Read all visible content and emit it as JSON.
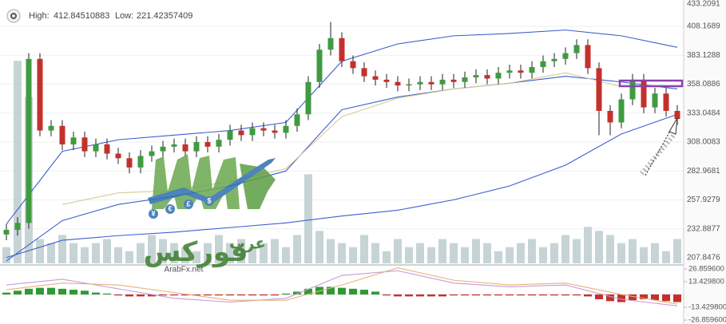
{
  "chart_data": {
    "type": "candlestick",
    "header": {
      "high_label": "High:",
      "high": 412.84510883,
      "low_label": "Low:",
      "low": 221.42357409
    },
    "ylim": [
      203,
      431
    ],
    "yticks": [
      433.2091,
      408.1689,
      383.1288,
      358.0886,
      333.0484,
      308.0083,
      282.9681,
      257.9279,
      232.8877,
      207.8476
    ],
    "grid": true,
    "up_color": "#3f9b3f",
    "down_color": "#c4302b",
    "open": [
      228,
      232,
      238,
      380,
      318,
      322,
      306,
      312,
      300,
      306,
      298,
      294,
      286,
      296,
      300,
      304,
      306,
      300,
      308,
      304,
      310,
      318,
      314,
      320,
      318,
      316,
      322,
      332,
      360,
      388,
      398,
      378,
      372,
      365,
      362,
      360,
      357,
      358,
      360,
      358,
      362,
      360,
      364,
      366,
      363,
      368,
      370,
      368,
      373,
      378,
      380,
      385,
      392,
      372,
      335,
      325,
      345,
      362,
      338,
      350,
      335
    ],
    "high": [
      237,
      243,
      385,
      385,
      327,
      327,
      317,
      317,
      311,
      311,
      303,
      299,
      301,
      305,
      309,
      311,
      311,
      313,
      313,
      315,
      323,
      323,
      325,
      325,
      323,
      327,
      337,
      365,
      393,
      412,
      403,
      383,
      377,
      370,
      367,
      365,
      363,
      365,
      365,
      367,
      367,
      369,
      371,
      371,
      373,
      375,
      375,
      378,
      383,
      385,
      390,
      397,
      397,
      377,
      340,
      350,
      367,
      367,
      355,
      355,
      340
    ],
    "low": [
      223,
      227,
      233,
      313,
      313,
      301,
      301,
      295,
      295,
      293,
      289,
      281,
      281,
      291,
      295,
      299,
      295,
      295,
      299,
      299,
      305,
      309,
      309,
      313,
      311,
      311,
      317,
      327,
      355,
      383,
      373,
      367,
      360,
      357,
      355,
      352,
      352,
      353,
      353,
      353,
      355,
      355,
      359,
      358,
      358,
      363,
      363,
      363,
      368,
      373,
      375,
      380,
      367,
      314,
      314,
      320,
      340,
      333,
      333,
      330,
      323
    ],
    "close": [
      232,
      238,
      380,
      318,
      322,
      306,
      312,
      300,
      306,
      298,
      294,
      286,
      296,
      300,
      304,
      306,
      300,
      308,
      304,
      310,
      318,
      314,
      320,
      318,
      316,
      322,
      332,
      360,
      388,
      398,
      378,
      372,
      365,
      362,
      360,
      357,
      358,
      360,
      358,
      362,
      360,
      364,
      366,
      363,
      368,
      370,
      368,
      373,
      378,
      380,
      385,
      392,
      372,
      335,
      325,
      345,
      362,
      338,
      350,
      335,
      328
    ],
    "volume": {
      "color": "#b9c9cc",
      "ylim": [
        0,
        130
      ],
      "values": [
        8,
        100,
        82,
        12,
        10,
        14,
        10,
        8,
        10,
        12,
        8,
        6,
        10,
        14,
        12,
        10,
        8,
        6,
        10,
        14,
        10,
        12,
        8,
        10,
        12,
        8,
        14,
        44,
        16,
        12,
        10,
        8,
        14,
        10,
        6,
        12,
        8,
        10,
        8,
        12,
        10,
        8,
        12,
        10,
        6,
        8,
        10,
        12,
        8,
        10,
        14,
        12,
        18,
        16,
        14,
        10,
        12,
        8,
        10,
        6,
        12
      ]
    },
    "band_x": [
      0,
      5,
      10,
      15,
      20,
      25,
      30,
      35,
      40,
      45,
      50,
      55,
      60
    ],
    "bands": [
      {
        "color": "#3b5fcf",
        "values": [
          237,
          300,
          310,
          314,
          318,
          325,
          378,
          393,
          400,
          402,
          405,
          400,
          390
        ]
      },
      {
        "color": "#3b5fcf",
        "values": [
          205,
          240,
          254,
          261,
          270,
          283,
          336,
          347,
          354,
          359,
          365,
          360,
          354
        ]
      },
      {
        "color": "#3b5fcf",
        "values": [
          208,
          223,
          227,
          230,
          234,
          238,
          244,
          249,
          258,
          270,
          288,
          315,
          332
        ]
      },
      {
        "color": "#d9cb8f",
        "values": [
          null,
          254,
          264,
          266,
          274,
          285,
          330,
          346,
          354,
          359,
          368,
          356,
          null
        ]
      }
    ],
    "macd": {
      "ylim": [
        -31,
        30.2
      ],
      "yticks": [
        {
          "value": 26.8596,
          "label": "26.859600"
        },
        {
          "value": 13.4298,
          "label": "13.429800"
        },
        {
          "value": -13.4298,
          "label": "-13.429800"
        },
        {
          "value": -26.8596,
          "label": "-26.859600"
        }
      ],
      "hist_up_color": "#2e9a35",
      "hist_down_color": "#c4302b",
      "histogram": [
        2,
        4,
        6,
        7,
        7,
        6,
        5,
        4,
        2,
        1,
        -1,
        -2,
        -2,
        -2,
        -1,
        -1,
        -1,
        -1,
        -1,
        -1,
        -1,
        -1,
        -1,
        -1,
        -1,
        1,
        3,
        6,
        8,
        8,
        7,
        6,
        5,
        3,
        -1,
        -2,
        -2,
        -2,
        -2,
        -2,
        -1,
        -1,
        -1,
        -1,
        -1,
        -1,
        -1,
        -1,
        -1,
        -1,
        -1,
        -1,
        -2,
        -5,
        -7,
        -8,
        -6,
        -5,
        -6,
        -7,
        -8
      ],
      "lines": [
        {
          "color": "#c99bd8",
          "values": [
            10,
            16,
            6,
            -4,
            -8,
            -4,
            20,
            25,
            12,
            8,
            10,
            -5,
            -12
          ]
        },
        {
          "color": "#e5b27a",
          "values": [
            5,
            12,
            10,
            2,
            -6,
            -6,
            10,
            28,
            15,
            10,
            12,
            0,
            -10
          ]
        }
      ]
    },
    "watermark": {
      "arabic_top": "عرب",
      "arabic_main": "فوركس",
      "site": "ArabFx.net",
      "currency_icons": [
        "¥",
        "€",
        "£",
        "$"
      ]
    }
  }
}
